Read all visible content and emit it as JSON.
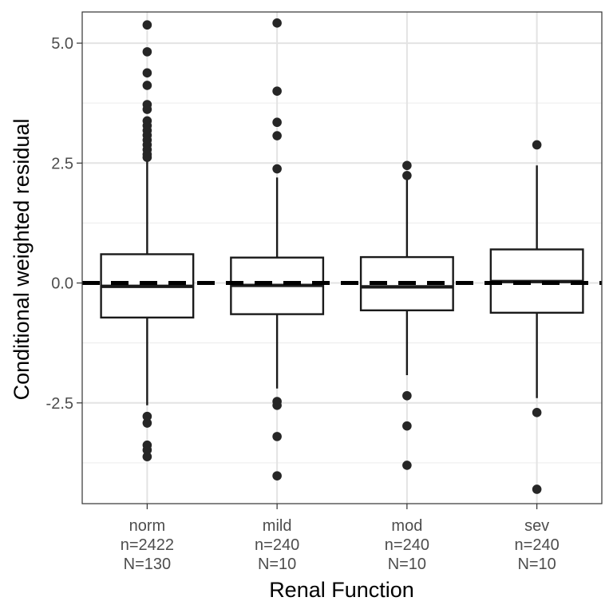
{
  "chart_data": {
    "type": "box",
    "xlabel": "Renal Function",
    "ylabel": "Conditional weighted residual",
    "ylim": [
      -4.6,
      5.65
    ],
    "yticks": [
      -2.5,
      0.0,
      2.5,
      5.0
    ],
    "ytick_labels": [
      "-2.5",
      "0.0",
      "2.5",
      "5.0"
    ],
    "grid": true,
    "reference_line": {
      "y": 0,
      "style": "dashed"
    },
    "categories": [
      {
        "name": "norm",
        "lines": [
          "norm",
          "n=2422",
          "N=130"
        ],
        "q1": -0.72,
        "median": -0.07,
        "q3": 0.6,
        "whisker_low": -2.55,
        "whisker_high": 2.55,
        "mean": 0.0,
        "outliers": [
          5.38,
          4.82,
          4.38,
          4.12,
          3.72,
          3.62,
          3.38,
          3.28,
          3.18,
          3.08,
          2.98,
          2.88,
          2.78,
          2.68,
          2.62,
          -2.78,
          -2.92,
          -3.38,
          -3.48,
          -3.62
        ]
      },
      {
        "name": "mild",
        "lines": [
          "mild",
          "n=240",
          "N=10"
        ],
        "q1": -0.65,
        "median": -0.05,
        "q3": 0.53,
        "whisker_low": -2.2,
        "whisker_high": 2.2,
        "mean": 0.0,
        "outliers": [
          5.42,
          4.0,
          3.35,
          3.07,
          2.38,
          -2.47,
          -2.55,
          -3.2,
          -4.02
        ]
      },
      {
        "name": "mod",
        "lines": [
          "mod",
          "n=240",
          "N=10"
        ],
        "q1": -0.57,
        "median": -0.08,
        "q3": 0.54,
        "whisker_low": -1.92,
        "whisker_high": 2.2,
        "mean": 0.0,
        "outliers": [
          2.45,
          2.24,
          -2.35,
          -2.98,
          -3.8
        ]
      },
      {
        "name": "sev",
        "lines": [
          "sev",
          "n=240",
          "N=10"
        ],
        "q1": -0.62,
        "median": 0.03,
        "q3": 0.7,
        "whisker_low": -2.4,
        "whisker_high": 2.45,
        "mean": 0.0,
        "outliers": [
          2.88,
          -2.7,
          -4.3
        ]
      }
    ]
  }
}
